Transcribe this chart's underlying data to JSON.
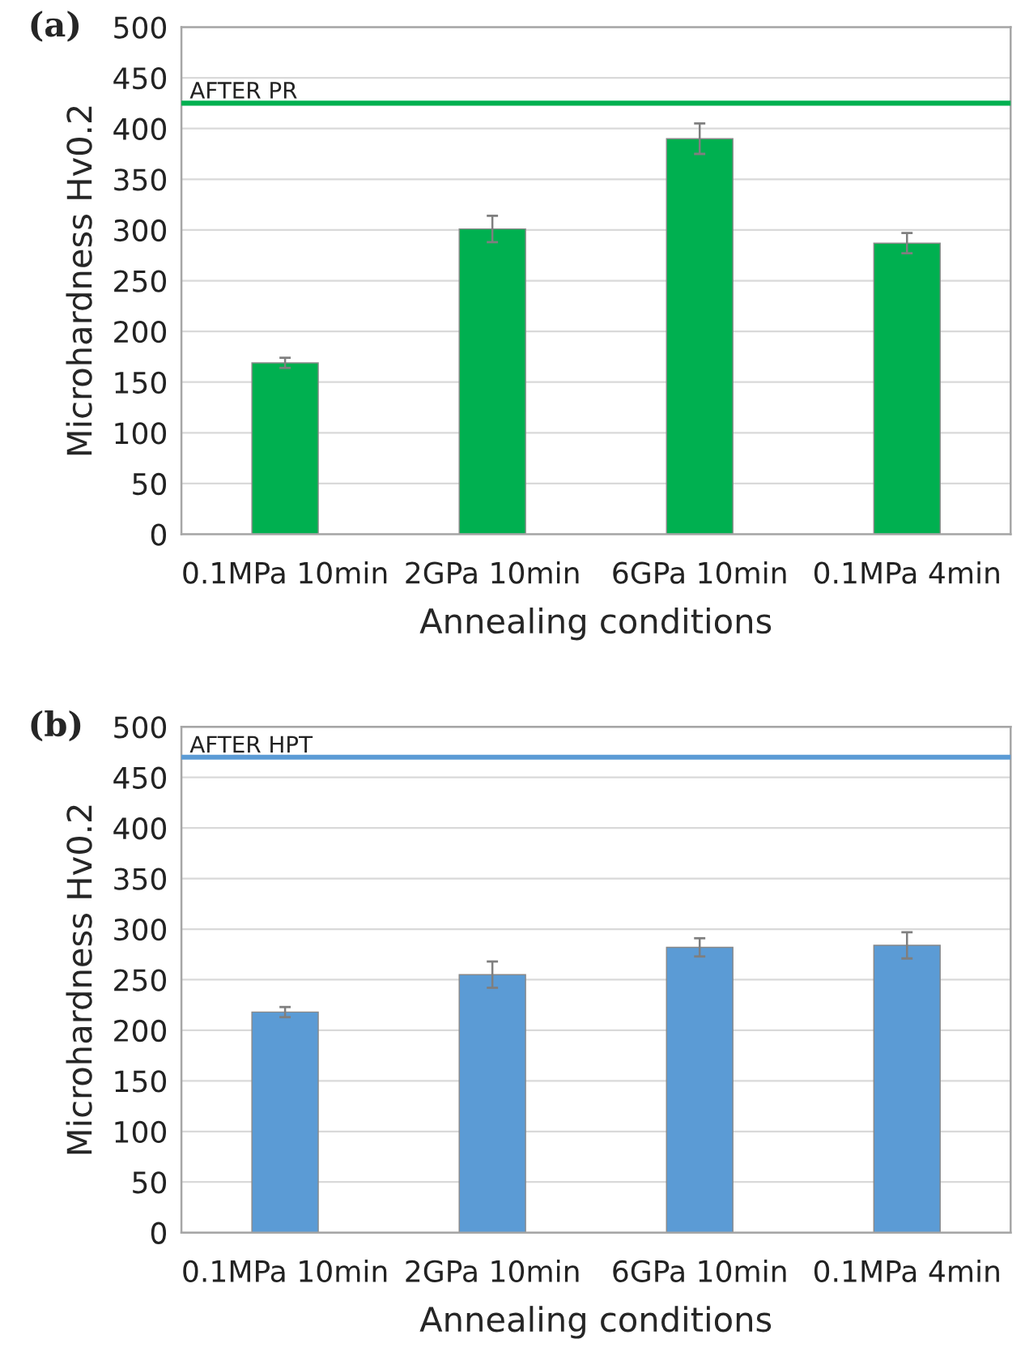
{
  "chart_data": [
    {
      "type": "bar",
      "title": "(a)",
      "xlabel": "Annealing conditions",
      "ylabel": "Microhardness Hv0.2",
      "categories": [
        "0.1MPa 10min",
        "2GPa 10min",
        "6GPa 10min",
        "0.1MPa 4min"
      ],
      "values": [
        169,
        301,
        390,
        287
      ],
      "errors": [
        5,
        13,
        15,
        10
      ],
      "color": "#00b050",
      "ylim": [
        0,
        500
      ],
      "yticks": [
        0,
        50,
        100,
        150,
        200,
        250,
        300,
        350,
        400,
        450,
        500
      ],
      "grid": "y",
      "ref_lines": [
        {
          "axis": "y",
          "value": 425,
          "label": "AFTER PR",
          "color": "#00b050"
        }
      ]
    },
    {
      "type": "bar",
      "title": "(b)",
      "xlabel": "Annealing conditions",
      "ylabel": "Microhardness Hv0.2",
      "categories": [
        "0.1MPa 10min",
        "2GPa 10min",
        "6GPa 10min",
        "0.1MPa 4min"
      ],
      "values": [
        218,
        255,
        282,
        284
      ],
      "errors": [
        5,
        13,
        9,
        13
      ],
      "color": "#5b9bd5",
      "ylim": [
        0,
        500
      ],
      "yticks": [
        0,
        50,
        100,
        150,
        200,
        250,
        300,
        350,
        400,
        450,
        500
      ],
      "grid": "y",
      "ref_lines": [
        {
          "axis": "y",
          "value": 470,
          "label": "AFTER HPT",
          "color": "#5b9bd5"
        }
      ]
    }
  ]
}
